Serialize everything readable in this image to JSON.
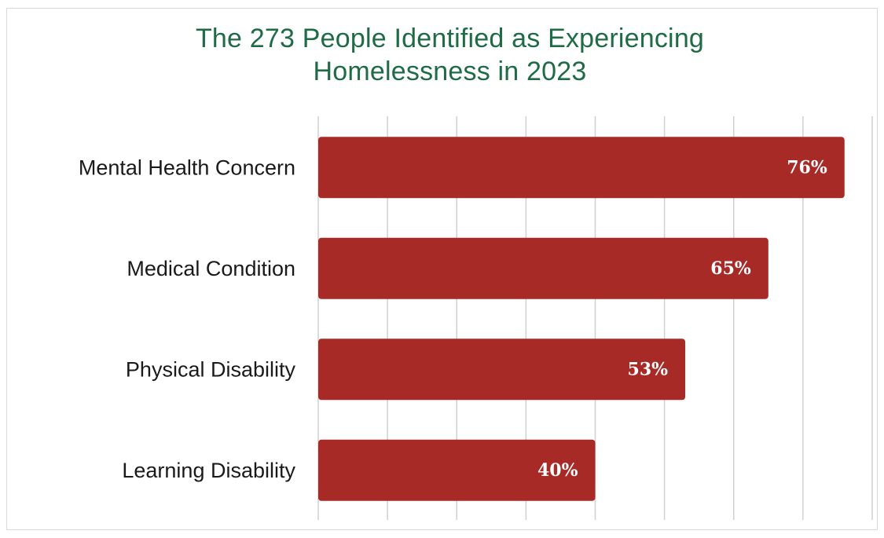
{
  "chart_data": {
    "type": "bar",
    "orientation": "horizontal",
    "title_lines": [
      "The 273 People Identified as Experiencing",
      "Homelessness in 2023"
    ],
    "categories": [
      "Mental Health Concern",
      "Medical Condition",
      "Physical Disability",
      "Learning Disability"
    ],
    "values": [
      76,
      65,
      53,
      40
    ],
    "value_labels": [
      "76%",
      "65%",
      "53%",
      "40%"
    ],
    "unit": "%",
    "xlim": [
      0,
      80
    ],
    "grid": true,
    "legend": "none",
    "bar_color": "#a82a27",
    "title_color": "#1f6b45"
  }
}
